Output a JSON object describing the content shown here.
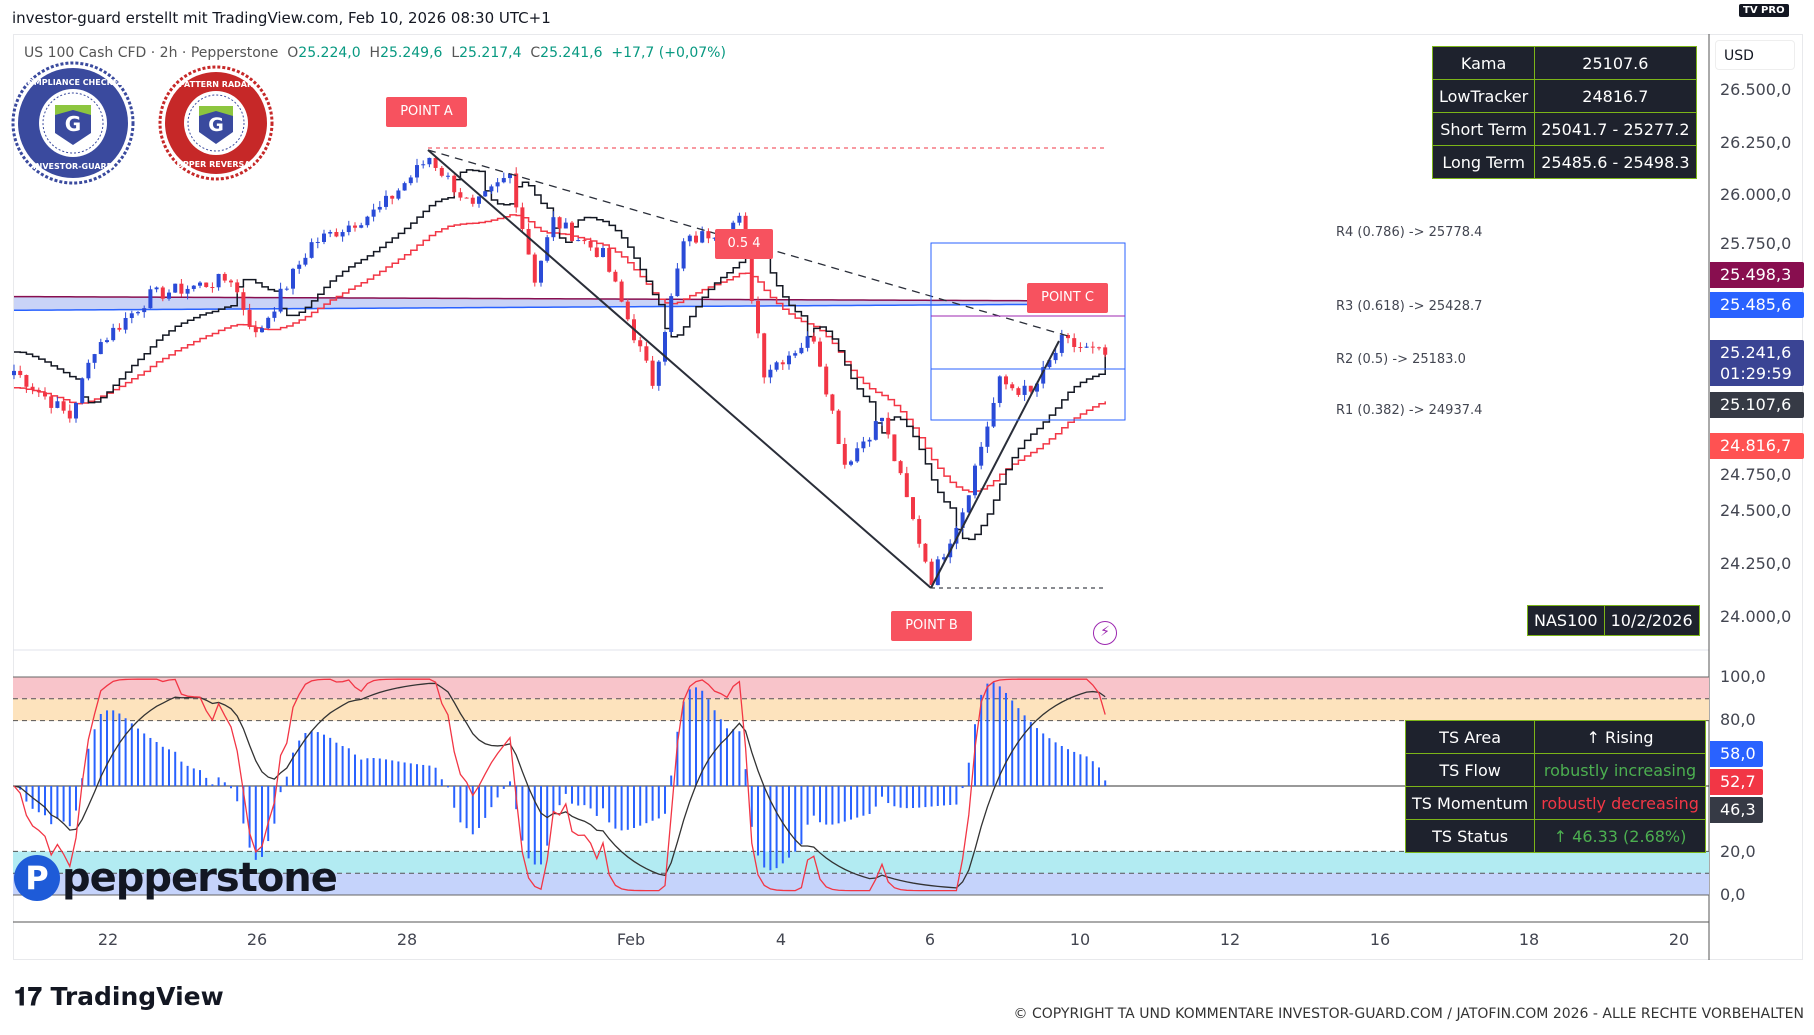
{
  "header": {
    "title": "investor-guard erstellt mit TradingView.com, Feb 10, 2026 08:30 UTC+1"
  },
  "symbol": {
    "name": "US 100 Cash CFD · 2h · Pepperstone",
    "open_label": "O",
    "open": "25.224,0",
    "high_label": "H",
    "high": "25.249,6",
    "low_label": "L",
    "low": "25.217,4",
    "close_label": "C",
    "close": "25.241,6",
    "change": "+17,7 (+0,07%)"
  },
  "badges": [
    {
      "top": "COMPLIANCE CHECKED",
      "bottom": "INVESTOR-GUARD",
      "color": "#3a4a9e"
    },
    {
      "top": "PATTERN RADAR",
      "bottom": "UPPER REVERSAL",
      "color": "#c62828"
    }
  ],
  "tv_pro": "PRO",
  "currency": "USD",
  "info_table": [
    {
      "label": "Kama",
      "value": "25107.6"
    },
    {
      "label": "LowTracker",
      "value": "24816.7"
    },
    {
      "label": "Short Term",
      "value": "25041.7 - 25277.2"
    },
    {
      "label": "Long Term",
      "value": "25485.6 - 25498.3"
    }
  ],
  "fib_levels": [
    {
      "text": "R4 (0.786) -> 25778.4"
    },
    {
      "text": "R3 (0.618) -> 25428.7"
    },
    {
      "text": "R2 (0.5) -> 25183.0"
    },
    {
      "text": "R1 (0.382) -> 24937.4"
    }
  ],
  "points": {
    "a": "POINT A",
    "b": "POINT B",
    "c": "POINT C",
    "mid": "0.5 4"
  },
  "price_axis": [
    "26.500,0",
    "26.250,0",
    "26.000,0",
    "25.750,0",
    "24.750,0",
    "24.500,0",
    "24.250,0",
    "24.000,0"
  ],
  "price_tags": {
    "long_upper": "25.498,3",
    "long_lower": "25.485,6",
    "last": "25.241,6",
    "countdown": "01:29:59",
    "kama": "25.107,6",
    "lowtracker": "24.816,7"
  },
  "osc_axis": [
    "100,0",
    "80,0",
    "20,0",
    "0,0"
  ],
  "osc_tags": [
    "58,0",
    "52,7",
    "46,3"
  ],
  "nas_table": {
    "symbol": "NAS100",
    "date": "10/2/2026"
  },
  "ts_table": [
    {
      "label": "TS Area",
      "value": "↑ Rising",
      "color": "#ffffff"
    },
    {
      "label": "TS Flow",
      "value": "robustly increasing",
      "color": "#4caf50"
    },
    {
      "label": "TS Momentum",
      "value": "robustly decreasing",
      "color": "#f23645"
    },
    {
      "label": "TS Status",
      "value": "↑ 46.33 (2.68%)",
      "color": "#4caf50"
    }
  ],
  "time_axis": [
    "22",
    "26",
    "28",
    "Feb",
    "4",
    "6",
    "10",
    "12",
    "16",
    "18",
    "20"
  ],
  "broker_logo": "pepperstone",
  "footer": {
    "brand": "TradingView",
    "copyright": "© COPYRIGHT TA UND KOMMENTARE INVESTOR-GUARD.COM / JATOFIN.COM 2026 - ALLE RECHTE VORBEHALTEN"
  },
  "colors": {
    "up": "#2a4bd7",
    "down": "#f23645",
    "kama": "#131722",
    "lowtracker": "#f23645"
  },
  "price_path": [
    [
      0,
      25168
    ],
    [
      9,
      24948
    ],
    [
      13,
      25277
    ],
    [
      22,
      25524
    ],
    [
      35,
      25606
    ],
    [
      39,
      25332
    ],
    [
      48,
      25771
    ],
    [
      59,
      25935
    ],
    [
      67,
      26182
    ],
    [
      74,
      25935
    ],
    [
      80,
      26100
    ],
    [
      84,
      25606
    ],
    [
      87,
      25880
    ],
    [
      95,
      25716
    ],
    [
      103,
      25113
    ],
    [
      108,
      25771
    ],
    [
      117,
      25880
    ],
    [
      121,
      25168
    ],
    [
      129,
      25332
    ],
    [
      134,
      24729
    ],
    [
      140,
      24948
    ],
    [
      145,
      24455
    ],
    [
      148,
      24181
    ],
    [
      153,
      24510
    ],
    [
      159,
      25113
    ],
    [
      164,
      25058
    ],
    [
      169,
      25305
    ],
    [
      176,
      25241
    ]
  ]
}
